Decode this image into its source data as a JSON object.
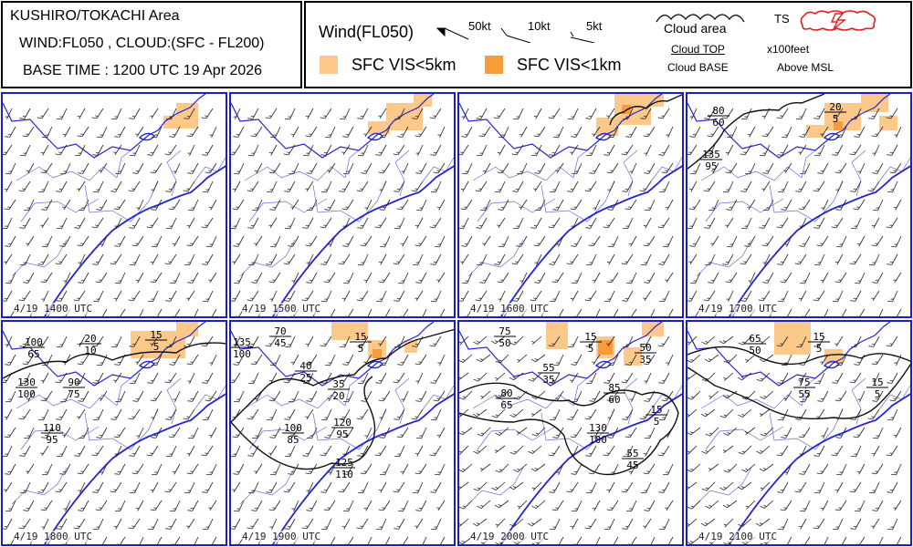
{
  "title": {
    "area": "KUSHIRO/TOKACHI Area",
    "layers": "WIND:FL050 , CLOUD:(SFC - FL200)",
    "base_time": "BASE TIME : 1200 UTC 19 Apr 2026"
  },
  "legend": {
    "wind_label": "Wind(FL050)",
    "barb_50": "50kt",
    "barb_10": "10kt",
    "barb_5": "5kt",
    "cloud_area": "Cloud area",
    "ts": "TS",
    "cloud_top": "Cloud TOP",
    "cloud_base": "Cloud BASE",
    "unit": "x100feet",
    "above": "Above MSL",
    "vis5": "SFC VIS<5km",
    "vis1": "SFC VIS<1km",
    "colors": {
      "vis5": "#fdc98a",
      "vis1": "#f79b3b",
      "ts": "#e02020",
      "coast": "#2424d0",
      "river": "#6a6ae0",
      "panel_border": "#1e1ec8"
    }
  },
  "panels": [
    {
      "time": "4/19 1400 UTC",
      "labels": []
    },
    {
      "time": "4/19 1500 UTC",
      "labels": []
    },
    {
      "time": "4/19 1600 UTC",
      "labels": []
    },
    {
      "time": "4/19 1700 UTC",
      "labels": [
        {
          "top": "80",
          "base": "60"
        },
        {
          "top": "20",
          "base": "5"
        },
        {
          "top": "135",
          "base": "95"
        }
      ]
    },
    {
      "time": "4/19 1800 UTC",
      "labels": [
        {
          "top": "100",
          "base": "65"
        },
        {
          "top": "20",
          "base": "10"
        },
        {
          "top": "15",
          "base": "5"
        },
        {
          "top": "130",
          "base": "100"
        },
        {
          "top": "90",
          "base": "75"
        },
        {
          "top": "110",
          "base": "95"
        }
      ]
    },
    {
      "time": "4/19 1900 UTC",
      "labels": [
        {
          "top": "70",
          "base": "45"
        },
        {
          "top": "135",
          "base": "100"
        },
        {
          "top": "15",
          "base": "5"
        },
        {
          "top": "40",
          "base": "25"
        },
        {
          "top": "35",
          "base": "20"
        },
        {
          "top": "120",
          "base": "95"
        },
        {
          "top": "100",
          "base": "85"
        },
        {
          "top": "125",
          "base": "110"
        }
      ]
    },
    {
      "time": "4/19 2000 UTC",
      "labels": [
        {
          "top": "75",
          "base": "50"
        },
        {
          "top": "15",
          "base": "5"
        },
        {
          "top": "50",
          "base": "35"
        },
        {
          "top": "55",
          "base": "35"
        },
        {
          "top": "80",
          "base": "65"
        },
        {
          "top": "85",
          "base": "60"
        },
        {
          "top": "15",
          "base": "5"
        },
        {
          "top": "130",
          "base": "100"
        },
        {
          "top": "55",
          "base": "45"
        }
      ]
    },
    {
      "time": "4/19 2100 UTC",
      "labels": [
        {
          "top": "65",
          "base": "50"
        },
        {
          "top": "15",
          "base": "5"
        },
        {
          "top": "75",
          "base": "55"
        },
        {
          "top": "15",
          "base": "5"
        }
      ]
    }
  ]
}
